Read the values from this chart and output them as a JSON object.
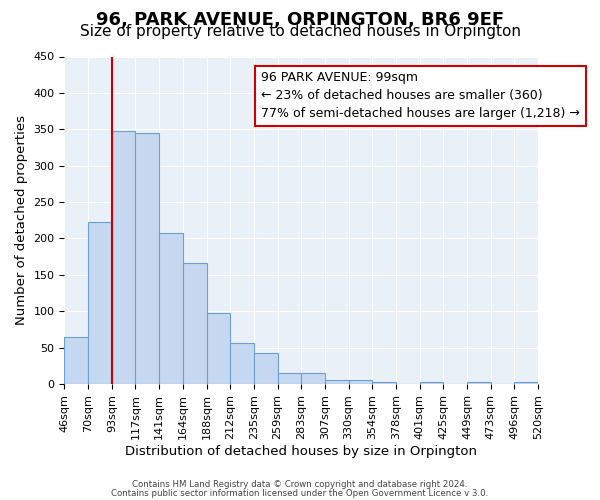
{
  "title": "96, PARK AVENUE, ORPINGTON, BR6 9EF",
  "subtitle": "Size of property relative to detached houses in Orpington",
  "xlabel": "Distribution of detached houses by size in Orpington",
  "ylabel": "Number of detached properties",
  "bin_edges": [
    "46sqm",
    "70sqm",
    "93sqm",
    "117sqm",
    "141sqm",
    "164sqm",
    "188sqm",
    "212sqm",
    "235sqm",
    "259sqm",
    "283sqm",
    "307sqm",
    "330sqm",
    "354sqm",
    "378sqm",
    "401sqm",
    "425sqm",
    "449sqm",
    "473sqm",
    "496sqm",
    "520sqm"
  ],
  "bar_values": [
    65,
    222,
    347,
    345,
    208,
    167,
    97,
    57,
    43,
    15,
    15,
    6,
    6,
    3,
    0,
    3,
    0,
    3,
    0,
    3
  ],
  "bar_color": "#c5d8f0",
  "bar_edge_color": "#6aa0d4",
  "vline_x": 2,
  "vline_color": "#cc0000",
  "annotation_box_text": "96 PARK AVENUE: 99sqm\n← 23% of detached houses are smaller (360)\n77% of semi-detached houses are larger (1,218) →",
  "annotation_box_color": "#ffffff",
  "annotation_box_edge_color": "#cc0000",
  "ylim": [
    0,
    450
  ],
  "yticks": [
    0,
    50,
    100,
    150,
    200,
    250,
    300,
    350,
    400,
    450
  ],
  "bg_color": "#eaf0f8",
  "footer_line1": "Contains HM Land Registry data © Crown copyright and database right 2024.",
  "footer_line2": "Contains public sector information licensed under the Open Government Licence v 3.0.",
  "title_fontsize": 13,
  "subtitle_fontsize": 11,
  "label_fontsize": 9.5,
  "tick_fontsize": 8,
  "annotation_fontsize": 9
}
